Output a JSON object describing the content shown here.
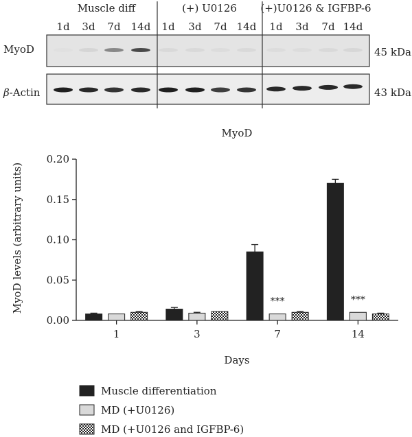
{
  "blot": {
    "groups": [
      "Muscle diff",
      "(+) U0126",
      "(+)U0126 & IGFBP-6"
    ],
    "lanes": [
      "1d",
      "3d",
      "7d",
      "14d",
      "1d",
      "3d",
      "7d",
      "14d",
      "1d",
      "3d",
      "7d",
      "14d"
    ],
    "rows": [
      {
        "label": "MyoD",
        "size": "45 kDa",
        "intensity": [
          0.03,
          0.08,
          0.45,
          0.75,
          0.06,
          0.06,
          0.05,
          0.06,
          0.05,
          0.05,
          0.06,
          0.07
        ]
      },
      {
        "label": "β-Actin",
        "size": "43 kDa",
        "intensity": [
          0.95,
          0.9,
          0.85,
          0.9,
          0.95,
          0.95,
          0.8,
          0.85,
          0.9,
          0.9,
          0.9,
          0.9
        ]
      }
    ]
  },
  "chart_data": {
    "type": "bar",
    "title": "MyoD",
    "xlabel": "Days",
    "ylabel": "MyoD levels (arbitrary units)",
    "categories": [
      "1",
      "3",
      "7",
      "14"
    ],
    "ylim": [
      0,
      0.2
    ],
    "yticks": [
      "0.00",
      "0.05",
      "0.10",
      "0.15",
      "0.20"
    ],
    "grid": false,
    "legend_position": "bottom",
    "series": [
      {
        "name": "Muscle differentiation",
        "values": [
          0.008,
          0.014,
          0.085,
          0.17
        ],
        "errors": [
          0.001,
          0.002,
          0.009,
          0.005
        ],
        "color": "#222222",
        "pattern": "solid"
      },
      {
        "name": "MD (+U0126)",
        "values": [
          0.008,
          0.009,
          0.008,
          0.01
        ],
        "errors": [
          0.0,
          0.001,
          0.0,
          0.0
        ],
        "color": "#d9d9d9",
        "pattern": "solid"
      },
      {
        "name": "MD (+U0126 and IGFBP-6)",
        "values": [
          0.01,
          0.011,
          0.01,
          0.008
        ],
        "errors": [
          0.001,
          0.0,
          0.001,
          0.001
        ],
        "color": "#222222",
        "pattern": "checker"
      }
    ],
    "annotations": [
      {
        "category": "7",
        "series": 1,
        "text": "***"
      },
      {
        "category": "14",
        "series": 1,
        "text": "***"
      }
    ]
  }
}
